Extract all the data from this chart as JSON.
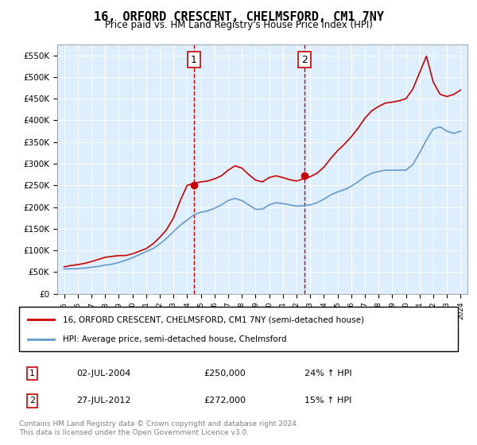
{
  "title": "16, ORFORD CRESCENT, CHELMSFORD, CM1 7NY",
  "subtitle": "Price paid vs. HM Land Registry's House Price Index (HPI)",
  "legend_line1": "16, ORFORD CRESCENT, CHELMSFORD, CM1 7NY (semi-detached house)",
  "legend_line2": "HPI: Average price, semi-detached house, Chelmsford",
  "sale1_label": "1",
  "sale1_date": "02-JUL-2004",
  "sale1_price": "£250,000",
  "sale1_hpi": "24% ↑ HPI",
  "sale1_year": 2004.5,
  "sale2_label": "2",
  "sale2_date": "27-JUL-2012",
  "sale2_price": "£272,000",
  "sale2_hpi": "15% ↑ HPI",
  "sale2_year": 2012.58,
  "footer": "Contains HM Land Registry data © Crown copyright and database right 2024.\nThis data is licensed under the Open Government Licence v3.0.",
  "red_color": "#cc0000",
  "blue_color": "#6699cc",
  "background_color": "#ddeeff",
  "ylim": [
    0,
    575000
  ],
  "yticks": [
    0,
    50000,
    100000,
    150000,
    200000,
    250000,
    300000,
    350000,
    400000,
    450000,
    500000,
    550000
  ],
  "ytick_labels": [
    "£0",
    "£50K",
    "£100K",
    "£150K",
    "£200K",
    "£250K",
    "£300K",
    "£350K",
    "£400K",
    "£450K",
    "£500K",
    "£550K"
  ],
  "hpi_years": [
    1995,
    1995.5,
    1996,
    1996.5,
    1997,
    1997.5,
    1998,
    1998.5,
    1999,
    1999.5,
    2000,
    2000.5,
    2001,
    2001.5,
    2002,
    2002.5,
    2003,
    2003.5,
    2004,
    2004.5,
    2005,
    2005.5,
    2006,
    2006.5,
    2007,
    2007.5,
    2008,
    2008.5,
    2009,
    2009.5,
    2010,
    2010.5,
    2011,
    2011.5,
    2012,
    2012.5,
    2013,
    2013.5,
    2014,
    2014.5,
    2015,
    2015.5,
    2016,
    2016.5,
    2017,
    2017.5,
    2018,
    2018.5,
    2019,
    2019.5,
    2020,
    2020.5,
    2021,
    2021.5,
    2022,
    2022.5,
    2023,
    2023.5,
    2024
  ],
  "hpi_values": [
    57000,
    57500,
    58000,
    59000,
    61000,
    63000,
    66000,
    68000,
    72000,
    77000,
    83000,
    90000,
    97000,
    104000,
    115000,
    128000,
    143000,
    158000,
    170000,
    182000,
    188000,
    191000,
    197000,
    205000,
    215000,
    220000,
    215000,
    205000,
    195000,
    195000,
    205000,
    210000,
    208000,
    205000,
    202000,
    203000,
    205000,
    210000,
    218000,
    228000,
    235000,
    240000,
    248000,
    258000,
    270000,
    278000,
    282000,
    285000,
    285000,
    285000,
    285000,
    298000,
    325000,
    355000,
    380000,
    385000,
    375000,
    370000,
    375000
  ],
  "price_years": [
    1995,
    1995.5,
    1996,
    1996.5,
    1997,
    1997.5,
    1998,
    1998.5,
    1999,
    1999.5,
    2000,
    2000.5,
    2001,
    2001.5,
    2002,
    2002.5,
    2003,
    2003.5,
    2004,
    2004.5,
    2005,
    2005.5,
    2006,
    2006.5,
    2007,
    2007.5,
    2008,
    2008.5,
    2009,
    2009.5,
    2010,
    2010.5,
    2011,
    2011.5,
    2012,
    2012.5,
    2013,
    2013.5,
    2014,
    2014.5,
    2015,
    2015.5,
    2016,
    2016.5,
    2017,
    2017.5,
    2018,
    2018.5,
    2019,
    2019.5,
    2020,
    2020.5,
    2021,
    2021.5,
    2022,
    2022.5,
    2023,
    2023.5,
    2024
  ],
  "price_values": [
    62000,
    65000,
    67000,
    70000,
    74000,
    79000,
    84000,
    86000,
    88000,
    88000,
    92000,
    98000,
    104000,
    115000,
    130000,
    148000,
    175000,
    215000,
    250000,
    255000,
    258000,
    260000,
    265000,
    272000,
    285000,
    295000,
    290000,
    275000,
    262000,
    258000,
    268000,
    272000,
    268000,
    263000,
    260000,
    265000,
    270000,
    278000,
    292000,
    312000,
    330000,
    345000,
    362000,
    382000,
    405000,
    422000,
    432000,
    440000,
    442000,
    445000,
    450000,
    472000,
    510000,
    548000,
    488000,
    460000,
    455000,
    460000,
    470000
  ]
}
